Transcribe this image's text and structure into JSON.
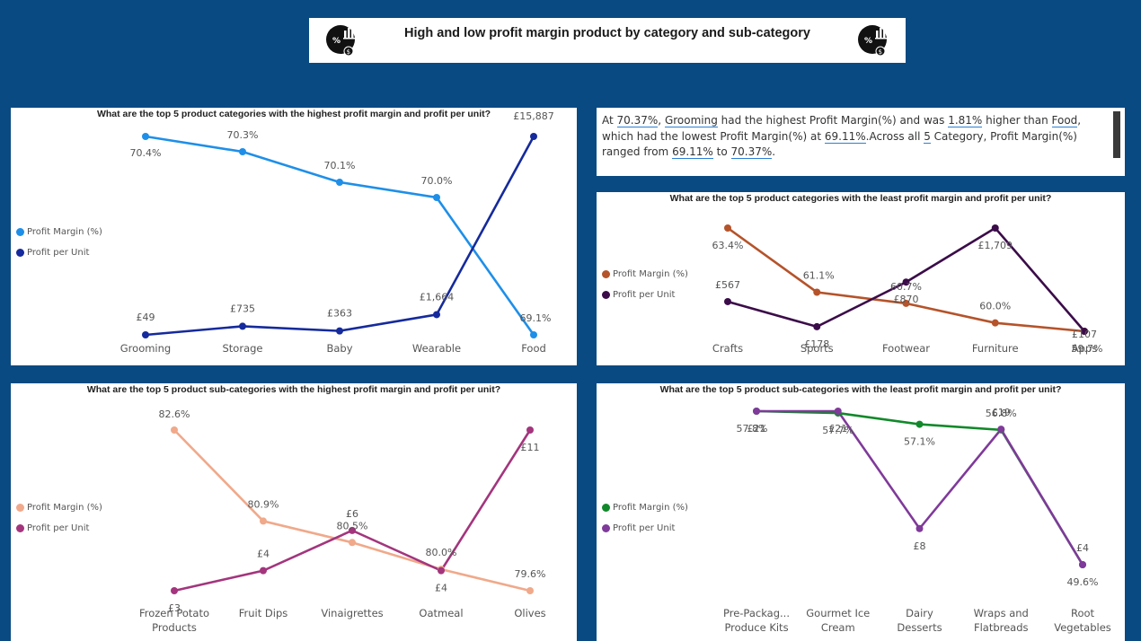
{
  "header": {
    "title": "High and low profit margin product by category and sub-category",
    "icons": [
      "profit-chart-icon",
      "profit-chart-icon"
    ]
  },
  "summary": {
    "parts": [
      {
        "t": "At ",
        "hl": false
      },
      {
        "t": "70.37%",
        "hl": true
      },
      {
        "t": ", ",
        "hl": false
      },
      {
        "t": "Grooming",
        "hl": true
      },
      {
        "t": " had the highest Profit Margin(%) and was ",
        "hl": false
      },
      {
        "t": "1.81%",
        "hl": true
      },
      {
        "t": " higher than ",
        "hl": false
      },
      {
        "t": "Food",
        "hl": true
      },
      {
        "t": ", which had the lowest Profit Margin(%) at ",
        "hl": false
      },
      {
        "t": "69.11%",
        "hl": true
      },
      {
        "t": ".Across all ",
        "hl": false
      },
      {
        "t": "5",
        "hl": true
      },
      {
        "t": " Category, Profit Margin(%) ranged from ",
        "hl": false
      },
      {
        "t": "69.11%",
        "hl": true
      },
      {
        "t": " to ",
        "hl": false
      },
      {
        "t": "70.37%",
        "hl": true
      },
      {
        "t": ".",
        "hl": false
      }
    ]
  },
  "chart_data": [
    {
      "type": "line",
      "title": "What are the top 5 product categories with the highest profit margin and profit per unit?",
      "categories": [
        "Grooming",
        "Storage",
        "Baby",
        "Wearable",
        "Food"
      ],
      "legend_position": "left",
      "series": [
        {
          "name": "Profit Margin (%)",
          "color": "#1e8fe8",
          "values": [
            70.4,
            70.3,
            70.1,
            70.0,
            69.1
          ],
          "labels": [
            "70.4%",
            "70.3%",
            "70.1%",
            "70.0%",
            "69.1%"
          ],
          "ylim": [
            69.1,
            70.4
          ]
        },
        {
          "name": "Profit per Unit",
          "color": "#152a9c",
          "values": [
            49,
            735,
            363,
            1664,
            15887
          ],
          "labels": [
            "£49",
            "£735",
            "£363",
            "£1,664",
            "£15,887"
          ],
          "axis": "secondary"
        }
      ]
    },
    {
      "type": "line",
      "title": "What are the top 5 product categories with the least profit margin and profit per unit?",
      "categories": [
        "Crafts",
        "Sports",
        "Footwear",
        "Furniture",
        "Apps"
      ],
      "legend_position": "left",
      "series": [
        {
          "name": "Profit Margin (%)",
          "color": "#b5532a",
          "values": [
            63.4,
            61.1,
            60.7,
            60.0,
            59.7
          ],
          "labels": [
            "63.4%",
            "61.1%",
            "60.7%",
            "60.0%",
            "59.7%"
          ],
          "ylim": [
            59.7,
            63.4
          ]
        },
        {
          "name": "Profit per Unit",
          "color": "#3b0c49",
          "values": [
            567,
            178,
            870,
            1709,
            107
          ],
          "labels": [
            "£567",
            "£178",
            "£870",
            "£1,709",
            "£107"
          ],
          "axis": "secondary"
        }
      ]
    },
    {
      "type": "line",
      "title": "What are the top 5 product sub-categories with the highest profit margin and profit per unit?",
      "categories": [
        "Frozen Potato Products",
        "Fruit Dips",
        "Vinaigrettes",
        "Oatmeal",
        "Olives"
      ],
      "legend_position": "left",
      "series": [
        {
          "name": "Profit Margin (%)",
          "color": "#f0a98a",
          "values": [
            82.6,
            80.9,
            80.5,
            80.0,
            79.6
          ],
          "labels": [
            "82.6%",
            "80.9%",
            "80.5%",
            "80.0%",
            "79.6%"
          ],
          "ylim": [
            79.6,
            82.6
          ]
        },
        {
          "name": "Profit per Unit",
          "color": "#a3357d",
          "values": [
            3,
            4,
            6,
            4,
            11
          ],
          "labels": [
            "£3",
            "£4",
            "£6",
            "£4",
            "£11"
          ],
          "axis": "secondary"
        }
      ]
    },
    {
      "type": "line",
      "title": "What are the top 5 product sub-categories with the least profit margin and profit per unit?",
      "categories": [
        "Pre-Packag... Produce Kits",
        "Gourmet Ice Cream",
        "Dairy Desserts",
        "Wraps and Flatbreads",
        "Root Vegetables"
      ],
      "legend_position": "left",
      "series": [
        {
          "name": "Profit Margin (%)",
          "color": "#11892a",
          "values": [
            57.8,
            57.7,
            57.1,
            56.8,
            49.6
          ],
          "labels": [
            "57.8%",
            "57.7%",
            "57.1%",
            "56.8%",
            "49.6%"
          ],
          "ylim": [
            49.6,
            57.8
          ]
        },
        {
          "name": "Profit per Unit",
          "color": "#7f3a9a",
          "values": [
            21,
            21,
            8,
            19,
            4
          ],
          "labels": [
            "£21",
            "£21",
            "£8",
            "£19",
            "£4"
          ],
          "axis": "secondary"
        }
      ]
    }
  ]
}
